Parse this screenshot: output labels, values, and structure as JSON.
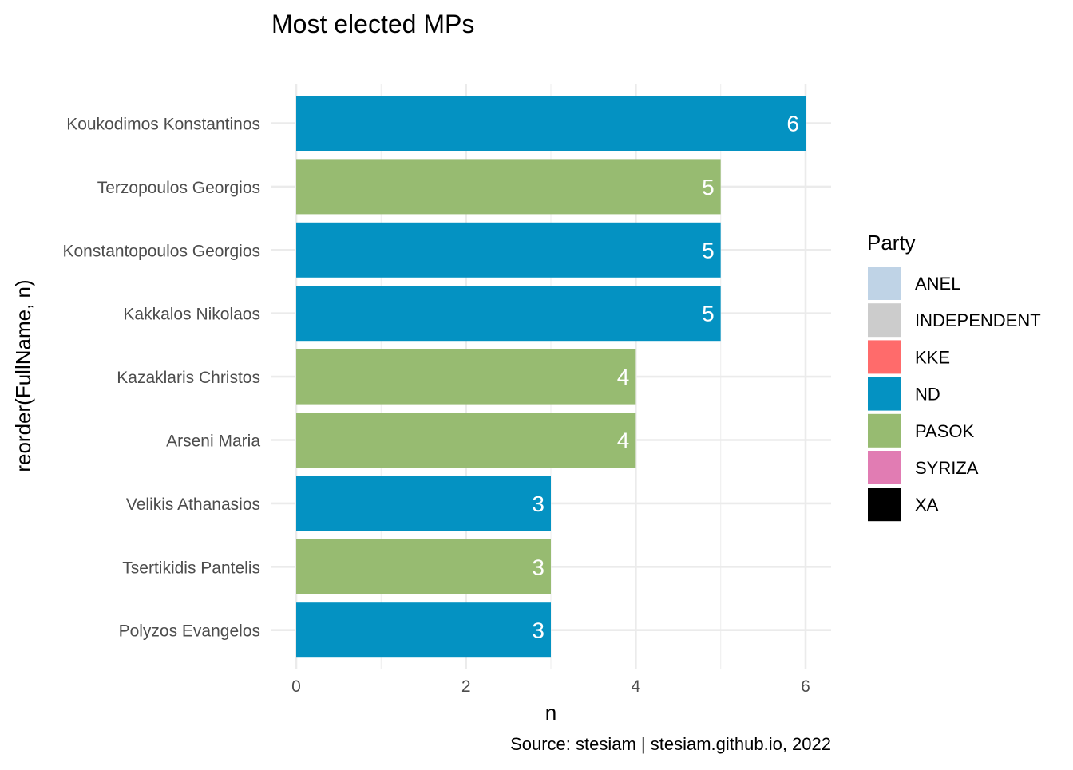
{
  "chart_data": {
    "type": "bar",
    "orientation": "horizontal",
    "title": "Most elected MPs",
    "xlabel": "n",
    "ylabel": "reorder(FullName, n)",
    "caption": "Source: stesiam | stesiam.github.io, 2022",
    "xlim": [
      0,
      6.3
    ],
    "xticks": [
      0,
      2,
      4,
      6
    ],
    "grid": true,
    "categories": [
      "Koukodimos Konstantinos",
      "Terzopoulos Georgios",
      "Konstantopoulos Georgios",
      "Kakkalos Nikolaos",
      "Kazaklaris Christos",
      "Arseni Maria",
      "Velikis Athanasios",
      "Tsertikidis Pantelis",
      "Polyzos Evangelos"
    ],
    "values": [
      6,
      5,
      5,
      5,
      4,
      4,
      3,
      3,
      3
    ],
    "party": [
      "ND",
      "PASOK",
      "ND",
      "ND",
      "PASOK",
      "PASOK",
      "ND",
      "PASOK",
      "ND"
    ],
    "legend": {
      "title": "Party",
      "position": "right",
      "entries": [
        {
          "name": "ANEL",
          "color": "#bfd3e6"
        },
        {
          "name": "INDEPENDENT",
          "color": "#cccccc"
        },
        {
          "name": "KKE",
          "color": "#ff6b6b"
        },
        {
          "name": "ND",
          "color": "#0492c2"
        },
        {
          "name": "PASOK",
          "color": "#97bb71"
        },
        {
          "name": "SYRIZA",
          "color": "#e17cb3"
        },
        {
          "name": "XA",
          "color": "#000000"
        }
      ]
    }
  }
}
